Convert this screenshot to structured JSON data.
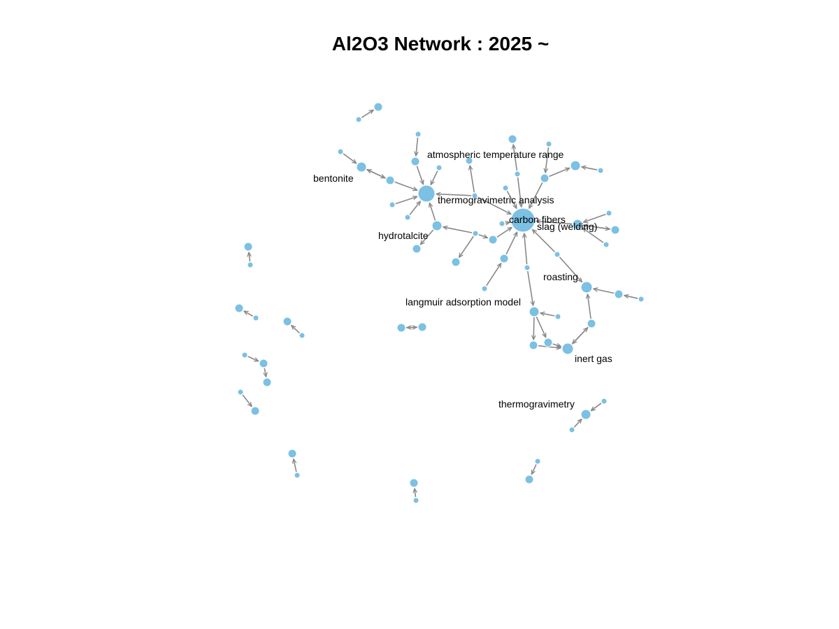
{
  "title": "Al2O3 Network : 2025 ~",
  "colors": {
    "node": "#7cc0e3",
    "edge": "#888888",
    "text": "#000000"
  },
  "labels": {
    "carbon_fibers": "carbon fibers",
    "thermogravimetric_analysis": "thermogravimetric analysis",
    "atmospheric_temperature_range": "atmospheric temperature range",
    "bentonite": "bentonite",
    "hydrotalcite": "hydrotalcite",
    "slag_welding": "slag (welding)",
    "roasting": "roasting",
    "langmuir_adsorption_model": "langmuir adsorption model",
    "inert_gas": "inert gas",
    "thermogravimetry": "thermogravimetry"
  }
}
